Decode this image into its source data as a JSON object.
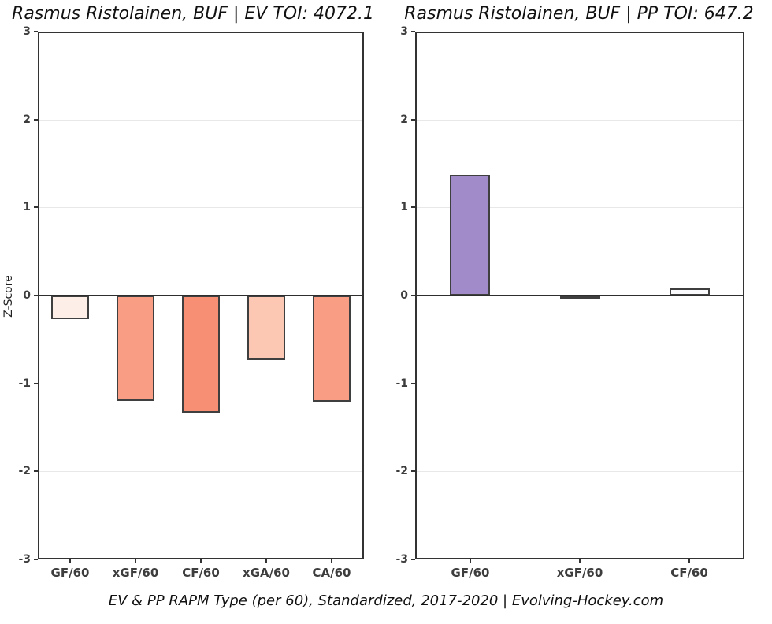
{
  "page": {
    "footer": "EV & PP RAPM Type (per 60), Standardized, 2017-2020    |    Evolving-Hockey.com"
  },
  "colors": {
    "frame": "#333333",
    "zero_line": "#2e2e2e",
    "gridline": "#e8e8e8",
    "bar_border": "#3f3f3f",
    "tick_label": "#3d3d3d",
    "negative_strong": "#f78f75",
    "negative_mid": "#f99d85",
    "negative_light": "#fcc7b3",
    "negative_faint": "#fdeee8",
    "positive_purple": "#a18bc8",
    "neutral_gray": "#d4d4d4",
    "near_white": "#faf9fc"
  },
  "chart_data": [
    {
      "type": "bar",
      "title": "Rasmus Ristolainen, BUF  |  EV TOI: 4072.1",
      "ylabel": "Z-Score",
      "xlabel": "",
      "ylim": [
        -3,
        3
      ],
      "yticks": [
        3,
        2,
        1,
        0,
        -1,
        -2,
        -3
      ],
      "grid": true,
      "legend_position": "none",
      "categories": [
        "GF/60",
        "xGF/60",
        "CF/60",
        "xGA/60",
        "CA/60"
      ],
      "values": [
        -0.27,
        -1.2,
        -1.33,
        -0.73,
        -1.21
      ],
      "bar_colors": [
        "#fdeee8",
        "#f99d85",
        "#f78f75",
        "#fcc7b3",
        "#f99d85"
      ]
    },
    {
      "type": "bar",
      "title": "Rasmus Ristolainen, BUF  |  PP TOI: 647.2",
      "ylabel": "",
      "xlabel": "",
      "ylim": [
        -3,
        3
      ],
      "yticks": [
        3,
        2,
        1,
        0,
        -1,
        -2,
        -3
      ],
      "grid": true,
      "legend_position": "none",
      "categories": [
        "GF/60",
        "xGF/60",
        "CF/60"
      ],
      "values": [
        1.37,
        -0.03,
        0.08
      ],
      "bar_colors": [
        "#a18bc8",
        "#d4d4d4",
        "#faf9fc"
      ]
    }
  ]
}
